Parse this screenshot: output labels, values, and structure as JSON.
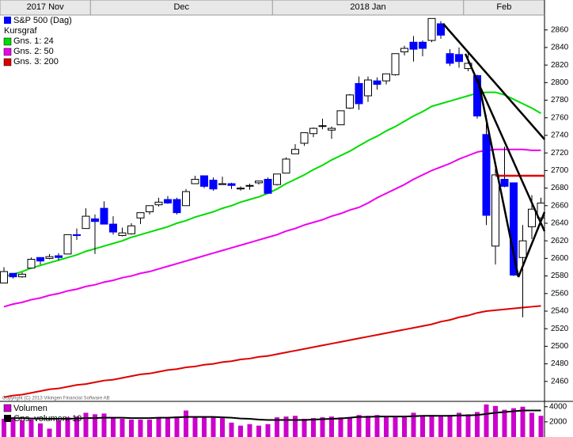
{
  "chart_data": {
    "type": "candlestick",
    "title": "S&P 500 (Dag)",
    "subtitle": "Kursgraf",
    "color": "#0000ff",
    "up_color": "#ffffff",
    "categories": [
      "2017 Nov",
      null,
      null,
      null,
      null,
      null,
      null,
      null,
      null,
      null,
      "Dec",
      null,
      null,
      null,
      null,
      null,
      null,
      null,
      null,
      null,
      null,
      null,
      null,
      null,
      null,
      null,
      null,
      null,
      null,
      null,
      "2018 Jan",
      null,
      null,
      null,
      null,
      null,
      null,
      null,
      null,
      null,
      null,
      null,
      null,
      null,
      null,
      null,
      null,
      null,
      null,
      null,
      null,
      "Feb",
      null,
      null,
      null,
      null,
      null,
      null,
      null,
      null
    ],
    "open": [
      2572,
      2583,
      2579,
      2589,
      2601,
      2600,
      2603,
      2605,
      2627,
      2634,
      2645,
      2657,
      2639,
      2626,
      2628,
      2646,
      2653,
      2661,
      2667,
      2667,
      2660,
      2685,
      2694,
      2689,
      2684,
      2685,
      2679,
      2683,
      2686,
      2690,
      2684,
      2697,
      2719,
      2731,
      2742,
      2751,
      2746,
      2752,
      2771,
      2799,
      2785,
      2802,
      2802,
      2809,
      2835,
      2846,
      2846,
      2848,
      2867,
      2833,
      2832,
      2816,
      2808,
      2741,
      2614,
      2690,
      2686,
      2601,
      2636,
      2646
    ],
    "high": [
      2590,
      2583,
      2584,
      2601,
      2601,
      2605,
      2606,
      2627,
      2634,
      2657,
      2650,
      2665,
      2648,
      2635,
      2640,
      2652,
      2660,
      2669,
      2671,
      2669,
      2679,
      2694,
      2694,
      2692,
      2693,
      2686,
      2682,
      2685,
      2688,
      2692,
      2696,
      2715,
      2730,
      2743,
      2749,
      2759,
      2750,
      2768,
      2787,
      2807,
      2807,
      2806,
      2810,
      2833,
      2842,
      2853,
      2848,
      2873,
      2870,
      2838,
      2840,
      2835,
      2809,
      2763,
      2702,
      2727,
      2686,
      2638,
      2672,
      2669
    ],
    "low": [
      2572,
      2577,
      2578,
      2589,
      2593,
      2599,
      2598,
      2605,
      2621,
      2634,
      2605,
      2639,
      2627,
      2625,
      2627,
      2639,
      2650,
      2659,
      2662,
      2650,
      2660,
      2685,
      2680,
      2677,
      2684,
      2679,
      2677,
      2678,
      2684,
      2674,
      2683,
      2697,
      2719,
      2728,
      2738,
      2747,
      2736,
      2752,
      2770,
      2769,
      2778,
      2792,
      2798,
      2808,
      2831,
      2824,
      2830,
      2846,
      2850,
      2819,
      2817,
      2813,
      2759,
      2638,
      2593,
      2681,
      2580,
      2533,
      2622,
      2646
    ],
    "close": [
      2585,
      2579,
      2582,
      2599,
      2597,
      2602,
      2601,
      2627,
      2626,
      2648,
      2642,
      2639,
      2630,
      2629,
      2637,
      2652,
      2660,
      2664,
      2663,
      2652,
      2676,
      2690,
      2682,
      2679,
      2685,
      2683,
      2680,
      2683,
      2688,
      2674,
      2696,
      2713,
      2724,
      2743,
      2748,
      2751,
      2748,
      2768,
      2786,
      2776,
      2803,
      2798,
      2810,
      2833,
      2839,
      2838,
      2839,
      2873,
      2854,
      2822,
      2824,
      2822,
      2762,
      2649,
      2695,
      2682,
      2581,
      2620,
      2656,
      2663
    ],
    "series": [
      {
        "name": "Gns. 1: 24",
        "color": "#00dd00",
        "values": [
          2579,
          2582,
          2585,
          2589,
          2592,
          2595,
          2598,
          2601,
          2604,
          2608,
          2611,
          2614,
          2617,
          2620,
          2624,
          2627,
          2630,
          2633,
          2636,
          2640,
          2643,
          2647,
          2650,
          2653,
          2657,
          2660,
          2664,
          2667,
          2670,
          2674,
          2679,
          2685,
          2690,
          2695,
          2701,
          2706,
          2712,
          2717,
          2722,
          2728,
          2734,
          2739,
          2745,
          2750,
          2756,
          2762,
          2767,
          2773,
          2776,
          2779,
          2782,
          2785,
          2788,
          2789,
          2789,
          2786,
          2781,
          2776,
          2771,
          2765
        ]
      },
      {
        "name": "Gns. 2: 50",
        "color": "#ee00ee",
        "values": [
          2545,
          2548,
          2550,
          2553,
          2555,
          2558,
          2560,
          2563,
          2565,
          2568,
          2570,
          2573,
          2575,
          2578,
          2580,
          2583,
          2585,
          2588,
          2591,
          2594,
          2597,
          2600,
          2603,
          2606,
          2609,
          2612,
          2615,
          2618,
          2621,
          2624,
          2627,
          2631,
          2634,
          2638,
          2641,
          2644,
          2648,
          2651,
          2655,
          2658,
          2663,
          2669,
          2674,
          2679,
          2684,
          2690,
          2695,
          2700,
          2704,
          2708,
          2713,
          2717,
          2721,
          2723,
          2724,
          2724,
          2724,
          2724,
          2723,
          2723
        ]
      },
      {
        "name": "Gns. 3: 200",
        "color": "#dd0000",
        "values": [
          2442,
          2444,
          2445,
          2447,
          2449,
          2451,
          2452,
          2454,
          2456,
          2457,
          2459,
          2461,
          2462,
          2464,
          2466,
          2468,
          2469,
          2471,
          2473,
          2474,
          2476,
          2477,
          2479,
          2480,
          2482,
          2483,
          2485,
          2486,
          2488,
          2489,
          2491,
          2493,
          2495,
          2497,
          2499,
          2501,
          2503,
          2505,
          2507,
          2509,
          2511,
          2513,
          2515,
          2517,
          2519,
          2521,
          2523,
          2525,
          2528,
          2530,
          2533,
          2535,
          2538,
          2540,
          2541,
          2542,
          2543,
          2544,
          2545,
          2546
        ]
      }
    ],
    "ylim": [
      2440,
      2876
    ],
    "yticks": [
      2460,
      2480,
      2500,
      2520,
      2540,
      2560,
      2580,
      2600,
      2620,
      2640,
      2660,
      2680,
      2700,
      2720,
      2740,
      2760,
      2780,
      2800,
      2820,
      2840,
      2860
    ],
    "copyright": "Copyright (C) 2013 Vikingen Financial Software AB",
    "volume": {
      "name": "Volumen",
      "color": "#cc00cc",
      "values": [
        2400,
        2500,
        2200,
        2300,
        1800,
        1100,
        2200,
        2600,
        2700,
        3200,
        3000,
        3100,
        2500,
        2400,
        2300,
        2300,
        2300,
        2600,
        2600,
        2700,
        3500,
        2600,
        2700,
        2600,
        2500,
        1900,
        1500,
        1700,
        1500,
        1700,
        2600,
        2700,
        2800,
        2400,
        2500,
        2600,
        2700,
        2600,
        2600,
        2900,
        2800,
        2900,
        2700,
        2600,
        2800,
        3200,
        2800,
        2900,
        2700,
        2900,
        3200,
        3000,
        3300,
        4300,
        4100,
        3600,
        3800,
        4000,
        3200,
        2800
      ],
      "ylim": [
        0,
        4600
      ],
      "yticks": [
        2000,
        4000
      ],
      "series": [
        {
          "name": "Gns. volumen: 10",
          "color": "#000000",
          "values": [
            2500,
            2500,
            2500,
            2450,
            2450,
            2400,
            2400,
            2400,
            2450,
            2500,
            2500,
            2550,
            2550,
            2550,
            2500,
            2500,
            2500,
            2550,
            2550,
            2600,
            2650,
            2650,
            2650,
            2650,
            2600,
            2550,
            2450,
            2400,
            2300,
            2250,
            2250,
            2250,
            2250,
            2250,
            2300,
            2350,
            2400,
            2450,
            2550,
            2650,
            2650,
            2700,
            2700,
            2700,
            2700,
            2750,
            2800,
            2800,
            2800,
            2800,
            2850,
            2850,
            2900,
            3050,
            3200,
            3300,
            3400,
            3500,
            3500,
            3500
          ]
        }
      ]
    }
  }
}
